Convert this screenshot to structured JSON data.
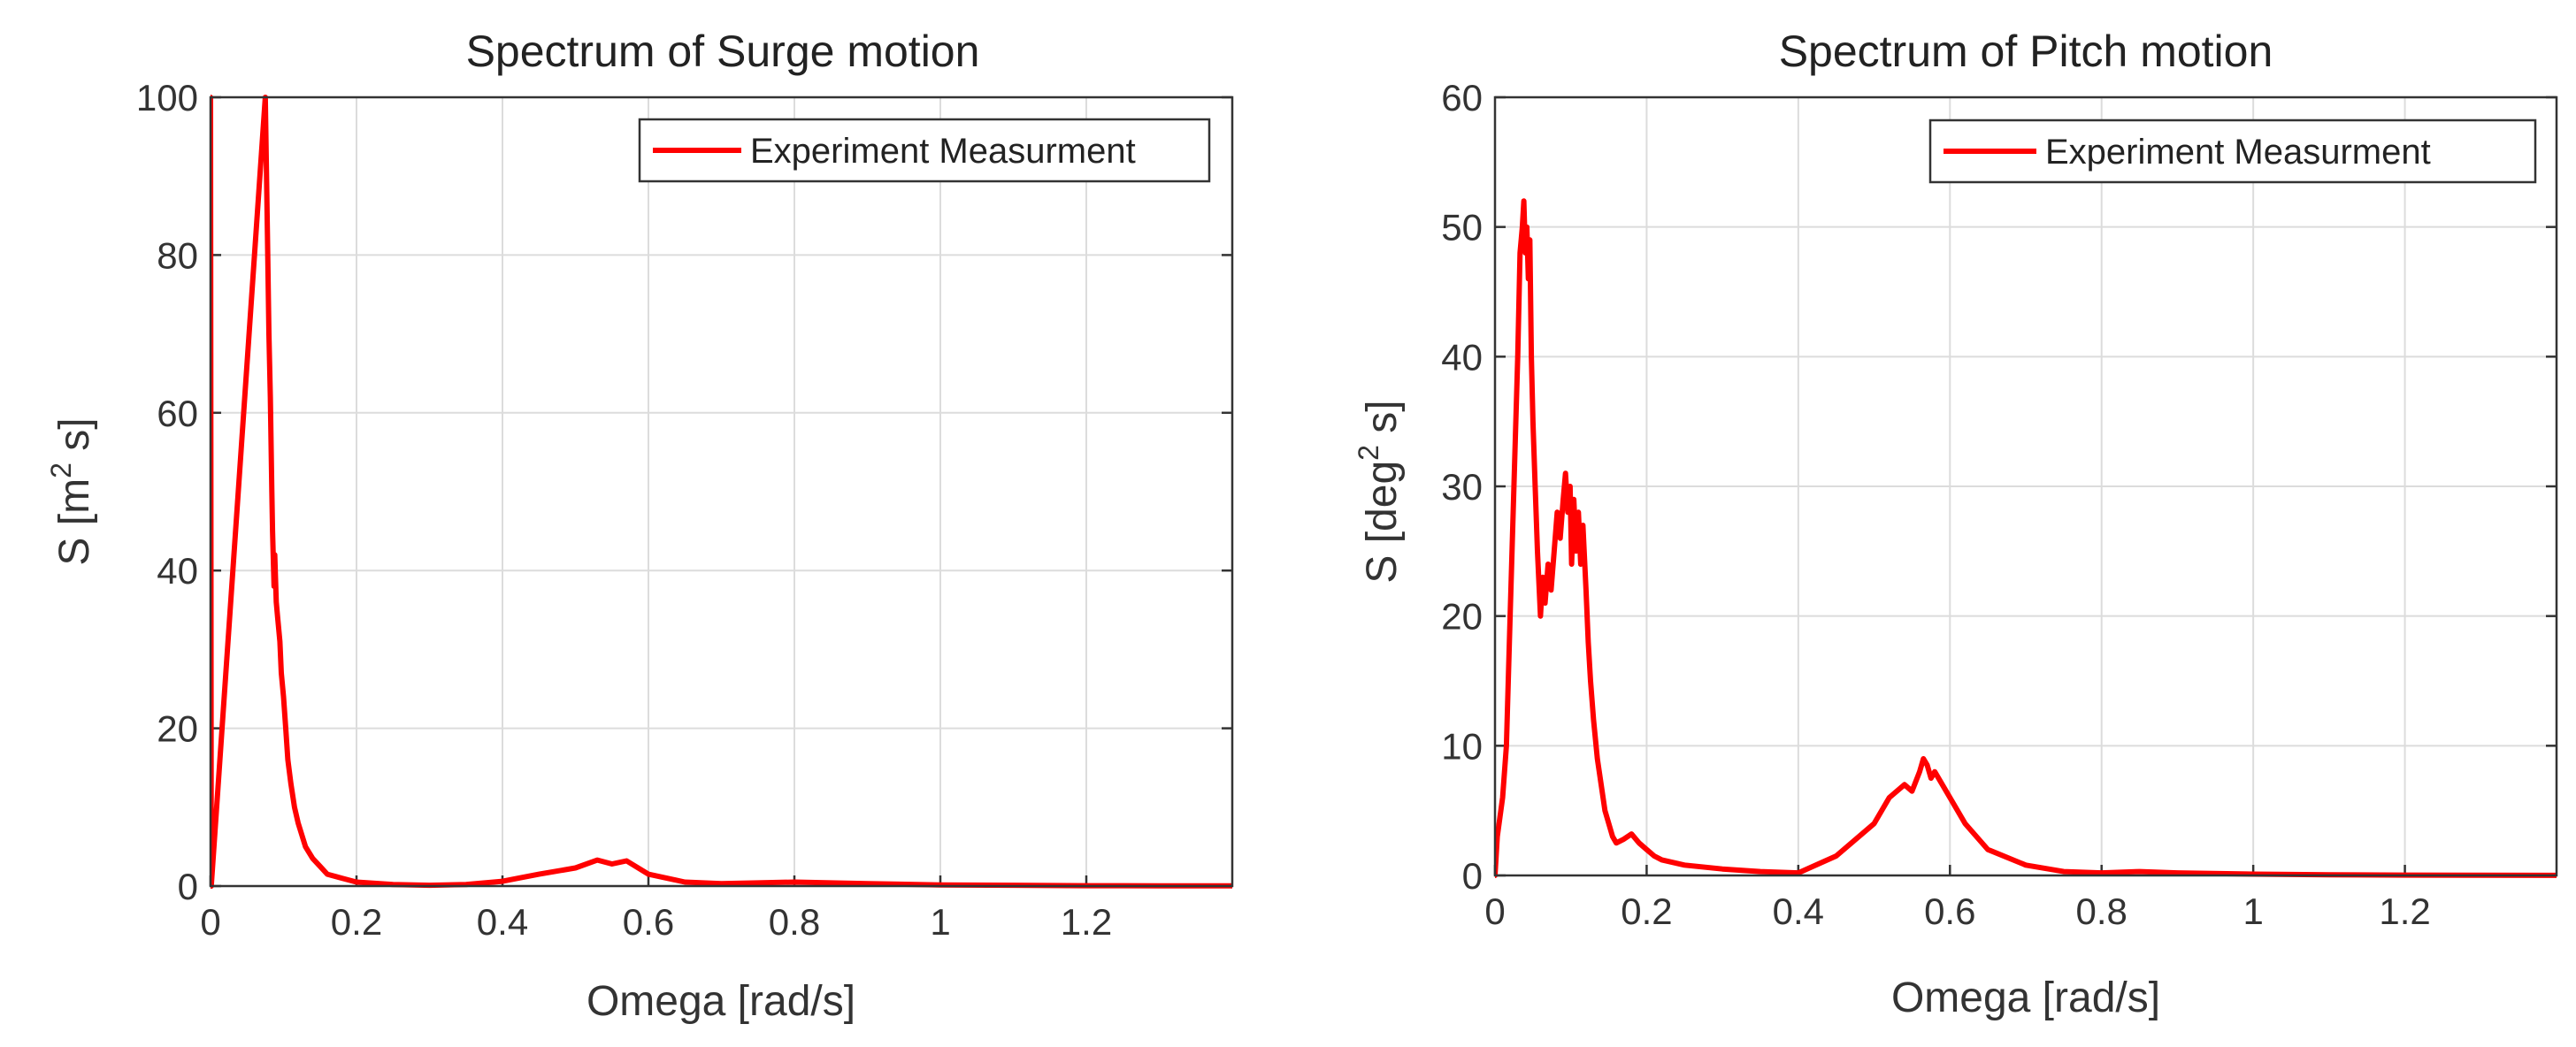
{
  "chart_data": [
    {
      "id": "surge",
      "type": "line",
      "title": "Spectrum of Surge motion",
      "xlabel": "Omega [rad/s]",
      "ylabel": {
        "base": "S [m",
        "sup": "2",
        "tail": " s]"
      },
      "xlim": [
        0,
        1.4
      ],
      "ylim": [
        0,
        100
      ],
      "xticks": [
        0,
        0.2,
        0.4,
        0.6,
        0.8,
        1,
        1.2
      ],
      "xtick_labels": [
        "0",
        "0.2",
        "0.4",
        "0.6",
        "0.8",
        "1",
        "1.2"
      ],
      "yticks": [
        0,
        20,
        40,
        60,
        80,
        100
      ],
      "ytick_labels": [
        "0",
        "20",
        "40",
        "60",
        "80",
        "100"
      ],
      "grid": true,
      "legend": {
        "position": "top-right",
        "entries": [
          "Experiment Measurment"
        ]
      },
      "series": [
        {
          "name": "Experiment Measurment",
          "color": "#ff0000",
          "x": [
            0,
            0,
            0.001,
            0.075,
            0.078,
            0.08,
            0.082,
            0.084,
            0.085,
            0.087,
            0.088,
            0.09,
            0.092,
            0.095,
            0.097,
            0.1,
            0.103,
            0.106,
            0.11,
            0.115,
            0.12,
            0.13,
            0.14,
            0.15,
            0.16,
            0.18,
            0.2,
            0.25,
            0.3,
            0.35,
            0.4,
            0.45,
            0.5,
            0.53,
            0.55,
            0.57,
            0.6,
            0.65,
            0.7,
            0.75,
            0.8,
            0.85,
            0.9,
            1.0,
            1.1,
            1.2,
            1.3,
            1.4
          ],
          "y": [
            0,
            100,
            0,
            100,
            82,
            70,
            62,
            50,
            45,
            38,
            42,
            36,
            34,
            31,
            27,
            24,
            20,
            16,
            13,
            10,
            8,
            5,
            3.5,
            2.5,
            1.5,
            1,
            0.5,
            0.2,
            0.1,
            0.2,
            0.6,
            1.5,
            2.3,
            3.3,
            2.8,
            3.2,
            1.5,
            0.5,
            0.3,
            0.4,
            0.5,
            0.4,
            0.3,
            0.15,
            0.1,
            0.05,
            0.03,
            0.02
          ]
        }
      ]
    },
    {
      "id": "pitch",
      "type": "line",
      "title": "Spectrum of Pitch motion",
      "xlabel": "Omega [rad/s]",
      "ylabel": {
        "base": "S [deg",
        "sup": "2",
        "tail": " s]"
      },
      "xlim": [
        0,
        1.4
      ],
      "ylim": [
        0,
        60
      ],
      "xticks": [
        0,
        0.2,
        0.4,
        0.6,
        0.8,
        1,
        1.2
      ],
      "xtick_labels": [
        "0",
        "0.2",
        "0.4",
        "0.6",
        "0.8",
        "1",
        "1.2"
      ],
      "yticks": [
        0,
        10,
        20,
        30,
        40,
        50,
        60
      ],
      "ytick_labels": [
        "0",
        "10",
        "20",
        "30",
        "40",
        "50",
        "60"
      ],
      "grid": true,
      "legend": {
        "position": "top-right",
        "entries": [
          "Experiment Measurment"
        ]
      },
      "series": [
        {
          "name": "Experiment Measurment",
          "color": "#ff0000",
          "x": [
            0,
            0.003,
            0.01,
            0.015,
            0.02,
            0.025,
            0.03,
            0.033,
            0.036,
            0.038,
            0.04,
            0.042,
            0.044,
            0.046,
            0.048,
            0.05,
            0.053,
            0.056,
            0.06,
            0.063,
            0.066,
            0.07,
            0.074,
            0.078,
            0.082,
            0.086,
            0.09,
            0.093,
            0.096,
            0.099,
            0.101,
            0.104,
            0.107,
            0.11,
            0.113,
            0.116,
            0.12,
            0.123,
            0.126,
            0.13,
            0.135,
            0.14,
            0.145,
            0.15,
            0.155,
            0.16,
            0.17,
            0.18,
            0.19,
            0.2,
            0.21,
            0.22,
            0.25,
            0.3,
            0.35,
            0.4,
            0.45,
            0.5,
            0.52,
            0.54,
            0.55,
            0.56,
            0.565,
            0.57,
            0.575,
            0.58,
            0.6,
            0.62,
            0.65,
            0.7,
            0.75,
            0.8,
            0.85,
            0.9,
            1.0,
            1.1,
            1.2,
            1.3,
            1.4
          ],
          "y": [
            0,
            3,
            6,
            10,
            20,
            30,
            40,
            48,
            50,
            52,
            48,
            50,
            46,
            49,
            40,
            35,
            30,
            25,
            20,
            23,
            21,
            24,
            22,
            25,
            28,
            26,
            29,
            31,
            28,
            30,
            24,
            29,
            25,
            28,
            24,
            27,
            22,
            18,
            15,
            12,
            9,
            7,
            5,
            4,
            3,
            2.5,
            2.8,
            3.2,
            2.5,
            2,
            1.5,
            1.2,
            0.8,
            0.5,
            0.3,
            0.2,
            1.5,
            4,
            6,
            7,
            6.5,
            8,
            9,
            8.5,
            7.5,
            8,
            6,
            4,
            2,
            0.8,
            0.3,
            0.2,
            0.3,
            0.2,
            0.1,
            0.05,
            0.03,
            0.02,
            0.01
          ]
        }
      ]
    }
  ]
}
